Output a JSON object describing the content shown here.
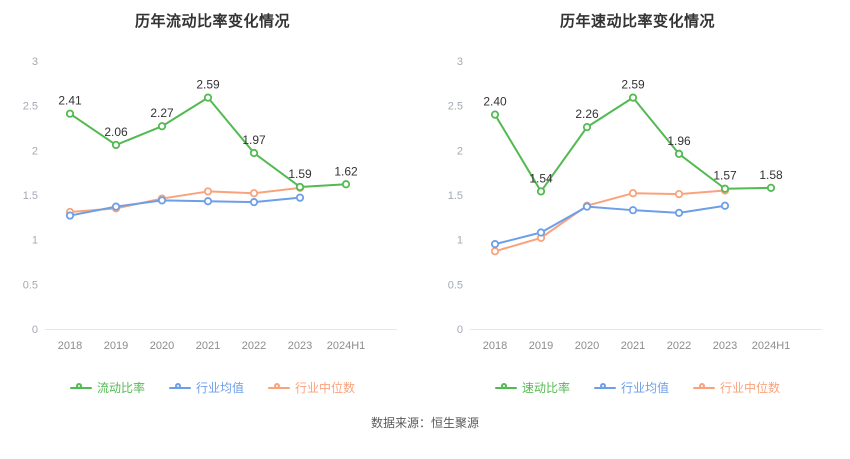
{
  "source_note": "数据来源：恒生聚源",
  "chart_data": [
    {
      "type": "line",
      "title": "历年流动比率变化情况",
      "categories": [
        "2018",
        "2019",
        "2020",
        "2021",
        "2022",
        "2023",
        "2024H1"
      ],
      "ylim": [
        0,
        3
      ],
      "yticks": [
        0,
        0.5,
        1,
        1.5,
        2,
        2.5,
        3
      ],
      "grid": false,
      "legend_position": "bottom",
      "series": [
        {
          "name": "流动比率",
          "color": "#53ba52",
          "show_point_labels": true,
          "values": [
            2.41,
            2.06,
            2.27,
            2.59,
            1.97,
            1.59,
            1.62
          ]
        },
        {
          "name": "行业均值",
          "color": "#6d9ee8",
          "show_point_labels": false,
          "values": [
            1.27,
            1.37,
            1.44,
            1.43,
            1.42,
            1.47,
            null
          ]
        },
        {
          "name": "行业中位数",
          "color": "#f9a37d",
          "show_point_labels": false,
          "values": [
            1.31,
            1.35,
            1.46,
            1.54,
            1.52,
            1.58,
            null
          ]
        }
      ]
    },
    {
      "type": "line",
      "title": "历年速动比率变化情况",
      "categories": [
        "2018",
        "2019",
        "2020",
        "2021",
        "2022",
        "2023",
        "2024H1"
      ],
      "ylim": [
        0,
        3
      ],
      "yticks": [
        0,
        0.5,
        1,
        1.5,
        2,
        2.5,
        3
      ],
      "grid": false,
      "legend_position": "bottom",
      "series": [
        {
          "name": "速动比率",
          "color": "#53ba52",
          "show_point_labels": true,
          "values": [
            2.4,
            1.54,
            2.26,
            2.59,
            1.96,
            1.57,
            1.58
          ]
        },
        {
          "name": "行业均值",
          "color": "#6d9ee8",
          "show_point_labels": false,
          "values": [
            0.95,
            1.08,
            1.37,
            1.33,
            1.3,
            1.38,
            null
          ]
        },
        {
          "name": "行业中位数",
          "color": "#f9a37d",
          "show_point_labels": false,
          "values": [
            0.87,
            1.02,
            1.38,
            1.52,
            1.51,
            1.55,
            null
          ]
        }
      ]
    }
  ]
}
